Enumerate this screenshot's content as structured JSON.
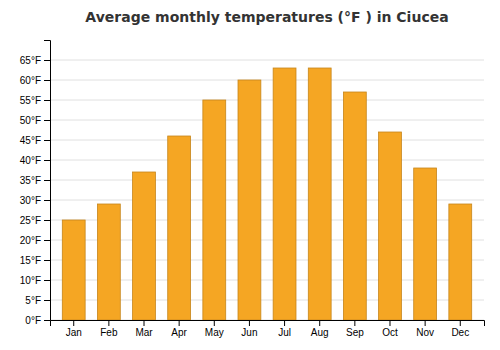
{
  "chart_data": {
    "type": "bar",
    "title": "Average monthly temperatures (°F ) in Ciucea",
    "categories": [
      "Jan",
      "Feb",
      "Mar",
      "Apr",
      "May",
      "Jun",
      "Jul",
      "Aug",
      "Sep",
      "Oct",
      "Nov",
      "Dec"
    ],
    "values": [
      25,
      29,
      37,
      46,
      55,
      60,
      63,
      63,
      57,
      47,
      38,
      29
    ],
    "color": "#F5A623",
    "ylim": [
      0,
      70
    ],
    "yticks": [
      {
        "value": 0,
        "label": "0°F"
      },
      {
        "value": 5,
        "label": "5°F"
      },
      {
        "value": 10,
        "label": "10°F"
      },
      {
        "value": 15,
        "label": "15°F"
      },
      {
        "value": 20,
        "label": "20°F"
      },
      {
        "value": 25,
        "label": "25°F"
      },
      {
        "value": 30,
        "label": "30°F"
      },
      {
        "value": 35,
        "label": "35°F"
      },
      {
        "value": 40,
        "label": "40°F"
      },
      {
        "value": 45,
        "label": "45°F"
      },
      {
        "value": 50,
        "label": "50°F"
      },
      {
        "value": 55,
        "label": "55°F"
      },
      {
        "value": 60,
        "label": "60°F"
      },
      {
        "value": 65,
        "label": "65°F"
      }
    ],
    "grid": true
  }
}
